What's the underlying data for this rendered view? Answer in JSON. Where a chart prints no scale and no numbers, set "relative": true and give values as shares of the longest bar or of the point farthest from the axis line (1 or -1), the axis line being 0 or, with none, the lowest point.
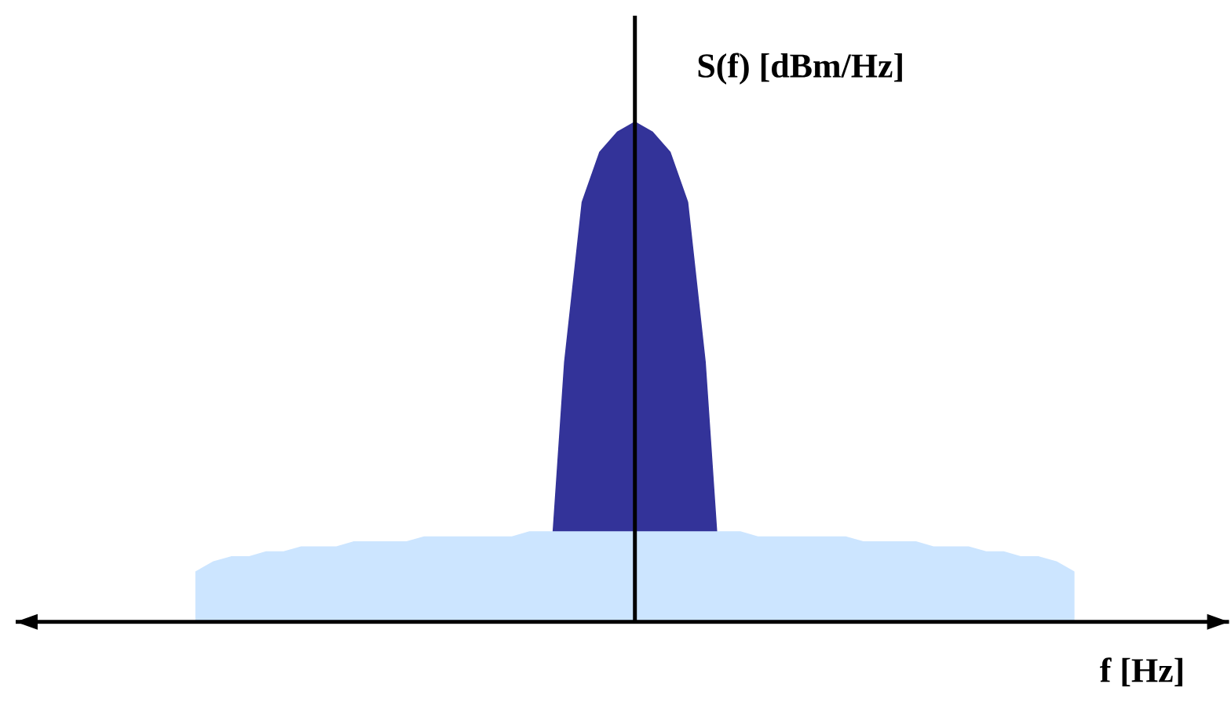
{
  "chart_data": {
    "type": "area",
    "relative": true,
    "xlabel": "f [Hz]",
    "ylabel": "S(f) [dBm/Hz]",
    "categories": [
      null,
      null,
      null,
      null,
      null,
      null,
      null,
      null,
      null,
      null,
      null,
      null,
      null,
      null,
      null,
      null,
      null,
      null,
      null,
      null,
      null,
      null,
      null,
      null,
      null,
      null,
      null,
      null,
      null,
      null,
      null,
      null,
      null,
      null,
      null,
      null,
      null,
      null,
      null,
      null,
      null,
      null,
      null,
      null,
      null,
      null,
      null,
      null,
      null,
      null,
      null
    ],
    "series": [
      {
        "color": "#333399",
        "values": [
          0,
          0,
          0,
          0,
          0,
          0,
          0,
          0,
          0,
          0,
          0,
          0,
          0,
          0,
          0,
          0,
          0,
          0,
          0,
          0,
          0,
          0.52,
          0.84,
          0.94,
          0.98,
          1,
          0.98,
          0.94,
          0.84,
          0.52,
          0,
          0,
          0,
          0,
          0,
          0,
          0,
          0,
          0,
          0,
          0,
          0,
          0,
          0,
          0,
          0,
          0,
          0,
          0,
          0,
          0
        ]
      },
      {
        "color": "#cce5ff",
        "values": [
          0.1,
          0.12,
          0.13,
          0.13,
          0.14,
          0.14,
          0.15,
          0.15,
          0.15,
          0.16,
          0.16,
          0.16,
          0.16,
          0.17,
          0.17,
          0.17,
          0.17,
          0.17,
          0.17,
          0.18,
          0.18,
          0.18,
          0.18,
          0.18,
          0.18,
          0.18,
          0.18,
          0.18,
          0.18,
          0.18,
          0.18,
          0.18,
          0.17,
          0.17,
          0.17,
          0.17,
          0.17,
          0.17,
          0.16,
          0.16,
          0.16,
          0.16,
          0.15,
          0.15,
          0.15,
          0.14,
          0.14,
          0.13,
          0.13,
          0.12,
          0.1
        ]
      }
    ]
  }
}
